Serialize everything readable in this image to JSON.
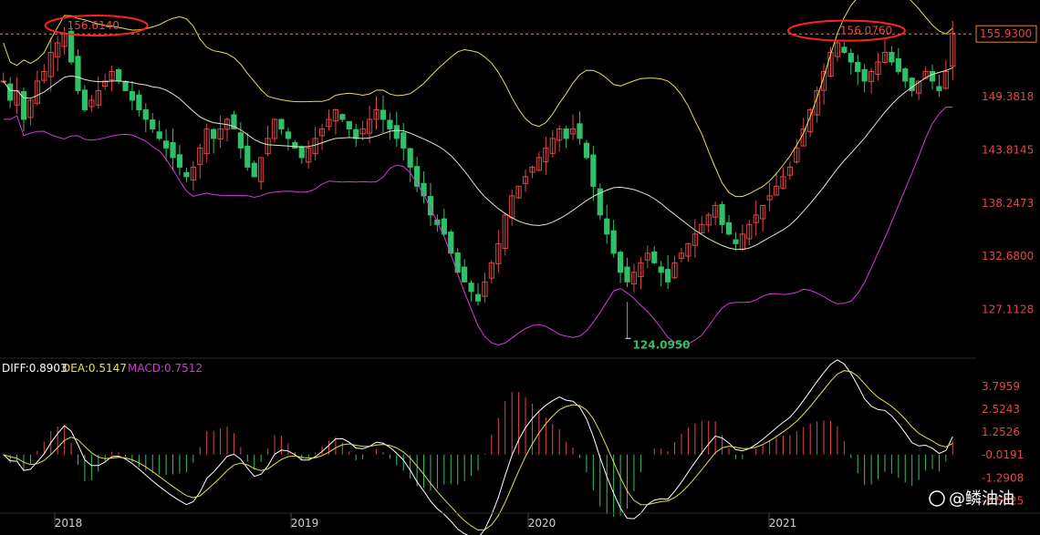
{
  "chart_data": [
    {
      "type": "candlestick",
      "panel": "price",
      "x_axis_labels": [
        "2018",
        "2019",
        "2020",
        "2021"
      ],
      "y_axis_labels": [
        "149.3818",
        "143.8145",
        "138.2473",
        "132.6800",
        "127.1128"
      ],
      "ylim": [
        122.5,
        159
      ],
      "last_price": "155.9300",
      "annotations": {
        "high_left": "156.6140",
        "high_right": "156.0760",
        "low": "124.0950"
      },
      "approx_close_series": [
        151,
        149,
        150,
        147,
        149,
        151,
        152,
        154,
        155,
        156,
        153,
        150,
        148,
        149,
        150,
        151,
        152,
        151,
        150,
        149,
        148,
        147,
        146,
        145,
        144,
        143,
        142,
        141,
        142,
        144,
        146,
        145,
        146,
        147,
        146,
        144,
        142,
        141,
        143,
        145,
        147,
        146,
        145,
        144,
        143,
        144,
        145,
        146,
        147,
        148,
        147,
        146,
        145,
        146,
        147,
        148,
        147,
        146,
        145,
        144,
        142,
        140,
        139,
        137,
        136,
        135,
        133,
        131,
        130,
        129,
        128,
        130,
        132,
        134,
        137,
        139,
        140,
        141,
        142,
        143,
        144,
        145,
        146,
        145,
        146,
        145,
        143,
        140,
        137,
        135,
        133,
        131,
        130,
        131,
        132,
        133,
        132,
        131,
        130,
        132,
        133,
        134,
        135,
        136,
        137,
        138,
        136,
        135,
        134,
        135,
        136,
        137,
        138,
        139,
        140,
        141,
        142,
        144,
        146,
        148,
        150,
        152,
        154,
        155,
        154,
        153,
        152,
        151,
        152,
        153,
        154,
        153,
        152,
        151,
        150,
        151,
        152,
        151,
        150,
        152,
        156
      ],
      "colors": {
        "up": "#e04848",
        "down": "#2fc169",
        "mid_band": "#e8e4c8",
        "upper_band": "#e6e04a",
        "lower_band": "#d23cd2",
        "annotation_ring": "#ff2020"
      }
    },
    {
      "type": "macd",
      "panel": "indicator",
      "legend": {
        "diff": "DIFF:0.8903",
        "dea": "DEA:0.5147",
        "macd": "MACD:0.7512"
      },
      "y_axis_labels": [
        "3.7959",
        "2.5243",
        "1.2526",
        "-0.0191",
        "-1.2908",
        "-2.5625"
      ],
      "ylim": [
        -3.0,
        4.4
      ],
      "colors": {
        "diff": "#ffffff",
        "dea": "#e6e04a",
        "macd_label": "#d23cd2",
        "pos": "#e04848",
        "neg": "#2fc169"
      }
    }
  ],
  "watermark": "@鳞油油"
}
